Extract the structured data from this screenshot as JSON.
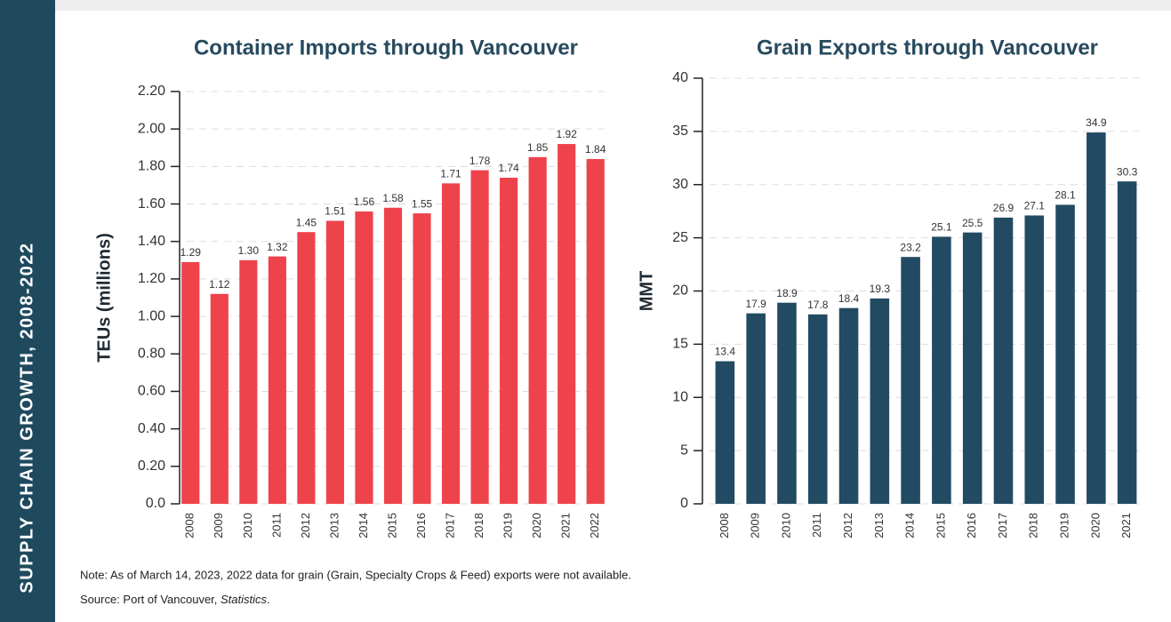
{
  "sidebar": "SUPPLY CHAIN GROWTH, 2008-2022",
  "chart_data": [
    {
      "type": "bar",
      "title": "Container Imports through Vancouver",
      "y_label": "TEUs (millions)",
      "color": "#ef434c",
      "categories": [
        "2008",
        "2009",
        "2010",
        "2011",
        "2012",
        "2013",
        "2014",
        "2015",
        "2016",
        "2017",
        "2018",
        "2019",
        "2020",
        "2021",
        "2022"
      ],
      "values": [
        1.29,
        1.12,
        1.3,
        1.32,
        1.45,
        1.51,
        1.56,
        1.58,
        1.55,
        1.71,
        1.78,
        1.74,
        1.85,
        1.92,
        1.84
      ],
      "value_labels": [
        "1.29",
        "1.12",
        "1.30",
        "1.32",
        "1.45",
        "1.51",
        "1.56",
        "1.58",
        "1.55",
        "1.71",
        "1.78",
        "1.74",
        "1.85",
        "1.92",
        "1.84"
      ],
      "ylim": [
        0,
        2.2
      ],
      "yticks": [
        {
          "value": 0,
          "label": "0.0"
        },
        {
          "value": 0.2,
          "label": "0.20"
        },
        {
          "value": 0.4,
          "label": "0.40"
        },
        {
          "value": 0.6,
          "label": "0.60"
        },
        {
          "value": 0.8,
          "label": "0.80"
        },
        {
          "value": 1.0,
          "label": "1.00"
        },
        {
          "value": 1.2,
          "label": "1.20"
        },
        {
          "value": 1.4,
          "label": "1.40"
        },
        {
          "value": 1.6,
          "label": "1.60"
        },
        {
          "value": 1.8,
          "label": "1.80"
        },
        {
          "value": 2.0,
          "label": "2.00"
        },
        {
          "value": 2.2,
          "label": "2.20"
        }
      ],
      "grid": true
    },
    {
      "type": "bar",
      "title": "Grain Exports through Vancouver",
      "y_label": "MMT",
      "color": "#224a63",
      "categories": [
        "2008",
        "2009",
        "2010",
        "2011",
        "2012",
        "2013",
        "2014",
        "2015",
        "2016",
        "2017",
        "2018",
        "2019",
        "2020",
        "2021"
      ],
      "values": [
        13.4,
        17.9,
        18.9,
        17.8,
        18.4,
        19.3,
        23.2,
        25.1,
        25.5,
        26.9,
        27.1,
        28.1,
        34.9,
        30.3
      ],
      "ylim": [
        0,
        40
      ],
      "yticks": [
        0,
        5,
        10,
        15,
        20,
        25,
        30,
        35,
        40
      ],
      "grid": true
    }
  ],
  "note": "Note: As of March 14, 2023, 2022 data for grain (Grain, Specialty Crops & Feed) exports were not available.",
  "source": [
    "Source: Port of Vancouver, ",
    "Statistics",
    "."
  ]
}
